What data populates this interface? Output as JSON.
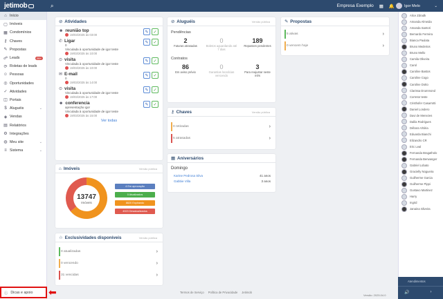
{
  "app": {
    "brand": "jetimob",
    "company": "Empresa Exemplo",
    "user": "Igor Melo"
  },
  "sidebar": {
    "items": [
      {
        "label": "Início",
        "icon": "home-icon",
        "glyph": "⌂"
      },
      {
        "label": "Imóveis",
        "icon": "building-icon",
        "glyph": "▢"
      },
      {
        "label": "Condomínios",
        "icon": "condo-icon",
        "glyph": "▦"
      },
      {
        "label": "Chaves",
        "icon": "key-icon",
        "glyph": "⚷"
      },
      {
        "label": "Propostas",
        "icon": "proposal-icon",
        "glyph": "✎"
      },
      {
        "label": "Leads",
        "icon": "leads-icon",
        "glyph": "☍",
        "badge": "99+"
      },
      {
        "label": "Roletas de leads",
        "icon": "roulette-icon",
        "glyph": "⟳"
      },
      {
        "label": "Pessoas",
        "icon": "people-icon",
        "glyph": "☺"
      },
      {
        "label": "Oportunidades",
        "icon": "opportunity-icon",
        "glyph": "◎"
      },
      {
        "label": "Atividades",
        "icon": "activity-icon",
        "glyph": "✓"
      },
      {
        "label": "Portais",
        "icon": "portal-icon",
        "glyph": "◫"
      },
      {
        "label": "Aluguéis",
        "icon": "rent-icon",
        "glyph": "$",
        "chevron": true
      },
      {
        "label": "Vendas",
        "icon": "sales-icon",
        "glyph": "◈"
      },
      {
        "label": "Relatórios",
        "icon": "report-icon",
        "glyph": "▤"
      },
      {
        "label": "Integrações",
        "icon": "integration-icon",
        "glyph": "⚙"
      },
      {
        "label": "Meu site",
        "icon": "globe-icon",
        "glyph": "◍",
        "chevron": true
      },
      {
        "label": "Sistema",
        "icon": "system-icon",
        "glyph": "≡",
        "chevron": true
      }
    ],
    "help": "Dicas e apoio"
  },
  "atividades": {
    "title": "Atividades",
    "items": [
      {
        "title": "reunião top",
        "icon": "group-icon",
        "glyph": "☻",
        "lines": [],
        "date": "19/03/2025 às 03:00"
      },
      {
        "title": "Ligar",
        "icon": "phone-icon",
        "glyph": "✆",
        "lines": [
          "0",
          "Vinculada à oportunidade de igor teste"
        ],
        "date": "19/03/2025 às 10:00"
      },
      {
        "title": "visita",
        "icon": "visit-icon",
        "glyph": "⊙",
        "lines": [
          "Vinculada à oportunidade de igor teste"
        ],
        "date": "19/03/2025 às 10:00"
      },
      {
        "title": "E-mail",
        "icon": "mail-icon",
        "glyph": "✉",
        "lines": [
          "0"
        ],
        "date": "19/03/2025 às 14:00"
      },
      {
        "title": "visita",
        "icon": "visit-icon",
        "glyph": "⊙",
        "lines": [
          "Vinculada à oportunidade de igor teste"
        ],
        "date": "19/03/2025 às 17:00"
      },
      {
        "title": "conferencia",
        "icon": "group-icon",
        "glyph": "☻",
        "lines": [
          "apresentação igor",
          "Vinculada à oportunidade de igor teste"
        ],
        "date": "19/03/2025 às 15:00"
      }
    ],
    "see_all": "Ver todas"
  },
  "imoveis": {
    "title": "Imóveis",
    "ver": "Versão pública",
    "total": "13747",
    "total_label": "Imóveis",
    "legend": [
      {
        "label": "4 Em aprovação",
        "color": "#5b7fbf",
        "fraction": 0.0003
      },
      {
        "label": "0 Atualizados",
        "color": "#4cae4c",
        "fraction": 0
      },
      {
        "label": "8820 Expirando",
        "color": "#f0931e",
        "fraction": 0.64
      },
      {
        "label": "4923 Desatualizados",
        "color": "#e05a4f",
        "fraction": 0.36
      }
    ]
  },
  "exclusividades": {
    "title": "Exclusividades disponíveis",
    "ver": "Versão pública",
    "rows": [
      {
        "label": "0 atualizadas",
        "color": "#5cb85c"
      },
      {
        "label": "0 vencendo",
        "color": "#f0ad4e"
      },
      {
        "label": "31 vencidas",
        "color": "#d9534f"
      }
    ]
  },
  "alugueis": {
    "title": "Aluguéis",
    "ver": "Versão pública",
    "pendencias": "Pendências",
    "kpis1": [
      {
        "n": "2",
        "l": "Faturas atrasadas",
        "g": false
      },
      {
        "n": "0",
        "l": "Boletos aguardando até 7 dias",
        "g": true
      },
      {
        "n": "189",
        "l": "Repasses pendentes",
        "g": false
      }
    ],
    "contratos": "Contratos",
    "kpis2": [
      {
        "n": "86",
        "l": "Em aviso prévio",
        "g": false
      },
      {
        "n": "0",
        "l": "Garantias locatícias vencendo",
        "g": true
      },
      {
        "n": "3",
        "l": "Para reajustar neste mês",
        "g": false
      }
    ]
  },
  "chaves": {
    "title": "Chaves",
    "ver": "Versão pública",
    "rows": [
      {
        "label": "0 retiradas",
        "color": "#f0ad4e"
      },
      {
        "label": "5 atrasadas",
        "color": "#d9534f"
      }
    ]
  },
  "aniversarios": {
    "title": "Aniversários",
    "day": "Domingo",
    "people": [
      {
        "name": "Karine Pedrosa Silva",
        "age": "41 anos"
      },
      {
        "name": "Gabbie Villa",
        "age": "3 anos"
      }
    ]
  },
  "propostas": {
    "title": "Propostas",
    "rows": [
      {
        "label": "5 ativas",
        "color": "#5cb85c"
      },
      {
        "label": "0 vencem hoje",
        "color": "#f0ad4e"
      }
    ]
  },
  "people": [
    {
      "name": "Alice Zdradk",
      "dark": false
    },
    {
      "name": "Amanda Almeida",
      "dark": false
    },
    {
      "name": "Amanda Santori",
      "dark": false
    },
    {
      "name": "Bernardo Ferreira",
      "dark": false
    },
    {
      "name": "Bianca Paulata",
      "dark": false
    },
    {
      "name": "Bruno Medeiros",
      "dark": true
    },
    {
      "name": "Bruno Mello",
      "dark": false
    },
    {
      "name": "Camila Oliveira",
      "dark": false
    },
    {
      "name": "Carol",
      "dark": false
    },
    {
      "name": "Caroline Bastos",
      "dark": true
    },
    {
      "name": "Caroline Cogo",
      "dark": false
    },
    {
      "name": "Caroline Dotto",
      "dark": true
    },
    {
      "name": "Clarissa Drummond",
      "dark": false
    },
    {
      "name": "Corretor teste",
      "dark": false
    },
    {
      "name": "Cristhofer Casarrotti",
      "dark": false
    },
    {
      "name": "Daniel Londero",
      "dark": true
    },
    {
      "name": "Davi de Menezes",
      "dark": false
    },
    {
      "name": "Dalila Rodrigues",
      "dark": false
    },
    {
      "name": "Débora Vitória",
      "dark": false
    },
    {
      "name": "Eduarda Bianchi",
      "dark": false
    },
    {
      "name": "Elizandro CR",
      "dark": false
    },
    {
      "name": "Eric Leal",
      "dark": false
    },
    {
      "name": "Fernanda Bragatholo",
      "dark": true
    },
    {
      "name": "Fernanda Berwanger",
      "dark": true
    },
    {
      "name": "Gabriel Lobato",
      "dark": false
    },
    {
      "name": "Gracielly Nogueira",
      "dark": true
    },
    {
      "name": "Guilherme Garcia",
      "dark": false
    },
    {
      "name": "Guilherme Pippi",
      "dark": true
    },
    {
      "name": "Gustavo Martinez",
      "dark": false
    },
    {
      "name": "Harry",
      "dark": false
    },
    {
      "name": "Ingrid",
      "dark": false
    },
    {
      "name": "Janaina Silveira",
      "dark": true
    }
  ],
  "rpanel_footer": {
    "label": "Atendimentos",
    "sound": "🔊"
  },
  "footer": {
    "links": [
      "Termos de Serviço",
      "Política de Privacidade",
      "Jetimob"
    ],
    "version": "Versão: 2025.04.0"
  }
}
